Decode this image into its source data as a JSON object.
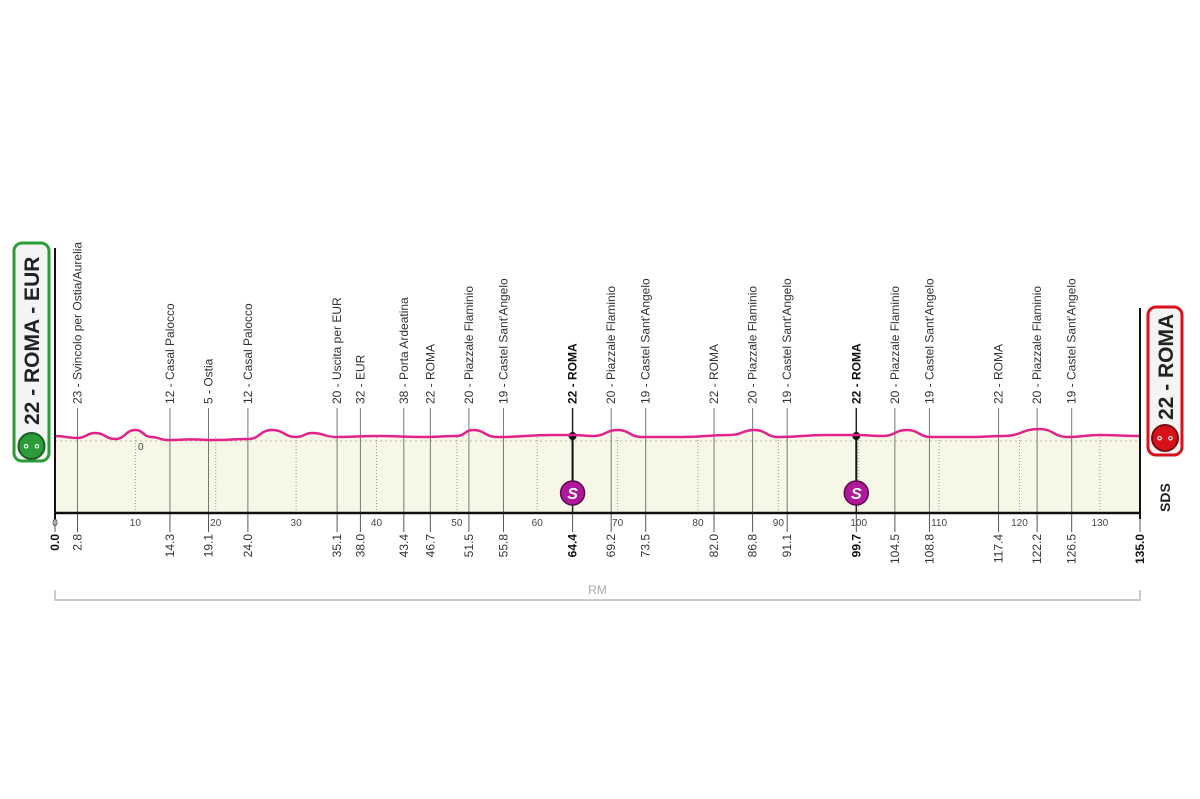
{
  "chart_data": {
    "type": "area",
    "start_label": "22 - ROMA - EUR",
    "finish_label": "22 - ROMA",
    "logo": "SDS",
    "footer_label": "RM",
    "zero_label": "0",
    "xlim": [
      0,
      135
    ],
    "x_ticks": [
      0,
      10,
      20,
      30,
      40,
      50,
      60,
      70,
      80,
      90,
      100,
      110,
      120,
      130
    ],
    "profile": [
      [
        0,
        25
      ],
      [
        2.8,
        15
      ],
      [
        5,
        40
      ],
      [
        7.5,
        10
      ],
      [
        10,
        55
      ],
      [
        12,
        20
      ],
      [
        14,
        5
      ],
      [
        17,
        8
      ],
      [
        20,
        5
      ],
      [
        24,
        10
      ],
      [
        27,
        55
      ],
      [
        30,
        20
      ],
      [
        32,
        40
      ],
      [
        35,
        20
      ],
      [
        40,
        25
      ],
      [
        46,
        20
      ],
      [
        50,
        25
      ],
      [
        52,
        55
      ],
      [
        55,
        20
      ],
      [
        62,
        30
      ],
      [
        64.4,
        30
      ],
      [
        67,
        25
      ],
      [
        70,
        55
      ],
      [
        73,
        20
      ],
      [
        78,
        20
      ],
      [
        84,
        30
      ],
      [
        87,
        55
      ],
      [
        90,
        20
      ],
      [
        96,
        30
      ],
      [
        99.7,
        30
      ],
      [
        103,
        25
      ],
      [
        106,
        55
      ],
      [
        109,
        20
      ],
      [
        114,
        20
      ],
      [
        118,
        25
      ],
      [
        122.5,
        60
      ],
      [
        126,
        20
      ],
      [
        130,
        30
      ],
      [
        135,
        25
      ]
    ],
    "waypoints": [
      {
        "km": "0.0",
        "label": "",
        "bold": true
      },
      {
        "km": "2.8",
        "label": "23 - Svincolo per Ostia/Aurelia"
      },
      {
        "km": "14.3",
        "label": "12 - Casal Palocco"
      },
      {
        "km": "19.1",
        "label": "5 - Ostia"
      },
      {
        "km": "24.0",
        "label": "12 - Casal Palocco"
      },
      {
        "km": "35.1",
        "label": "20 - Uscita per EUR"
      },
      {
        "km": "38.0",
        "label": "32 - EUR"
      },
      {
        "km": "43.4",
        "label": "38 - Porta Ardeatina"
      },
      {
        "km": "46.7",
        "label": "22 - ROMA"
      },
      {
        "km": "51.5",
        "label": "20 - Piazzale Flaminio"
      },
      {
        "km": "55.8",
        "label": "19 - Castel Sant'Angelo"
      },
      {
        "km": "64.4",
        "label": "22 - ROMA",
        "bold": true,
        "sprint": "S"
      },
      {
        "km": "69.2",
        "label": "20 - Piazzale Flaminio"
      },
      {
        "km": "73.5",
        "label": "19 - Castel Sant'Angelo"
      },
      {
        "km": "82.0",
        "label": "22 - ROMA"
      },
      {
        "km": "86.8",
        "label": "20 - Piazzale Flaminio"
      },
      {
        "km": "91.1",
        "label": "19 - Castel Sant'Angelo"
      },
      {
        "km": "99.7",
        "label": "22 - ROMA",
        "bold": true,
        "sprint": "S"
      },
      {
        "km": "104.5",
        "label": "20 - Piazzale Flaminio"
      },
      {
        "km": "108.8",
        "label": "19 - Castel Sant'Angelo"
      },
      {
        "km": "117.4",
        "label": "22 - ROMA"
      },
      {
        "km": "122.2",
        "label": "20 - Piazzale Flaminio"
      },
      {
        "km": "126.5",
        "label": "19 - Castel Sant'Angelo"
      },
      {
        "km": "135.0",
        "label": "",
        "bold": true
      }
    ],
    "colors": {
      "profile_line": "#e0248c",
      "fill": "#f6f7e6",
      "start": "#2a9d3a",
      "finish": "#d9111a",
      "sprint": "#b0189a"
    },
    "icons": {
      "start": "cyclist-icon",
      "finish": "cyclist-icon",
      "sprint": "sprint-s-icon"
    }
  }
}
